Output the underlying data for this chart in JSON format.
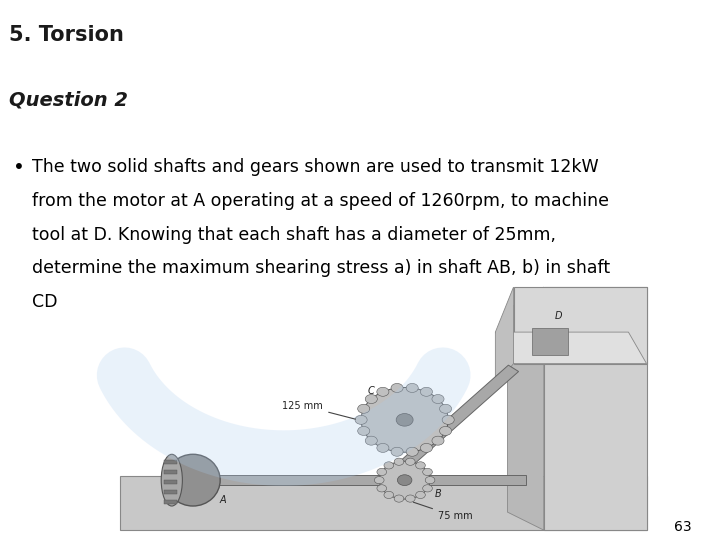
{
  "title": "5. Torsion",
  "subtitle": "Question 2",
  "bullet_lines": [
    "The two solid shafts and gears shown are used to transmit 12kW",
    "from the motor at A operating at a speed of 1260rpm, to machine",
    "tool at D. Knowing that each shaft has a diameter of 25mm,",
    "determine the maximum shearing stress a) in shaft AB, b) in shaft",
    "CD"
  ],
  "page_number": "63",
  "title_bg": "#b2d8d8",
  "subtitle_bg": "#c0390b",
  "title_color": "#1a1a1a",
  "subtitle_color": "#1a1a1a",
  "body_bg": "#ffffff",
  "title_fontsize": 15,
  "subtitle_fontsize": 14,
  "bullet_fontsize": 12.5,
  "page_fontsize": 10
}
